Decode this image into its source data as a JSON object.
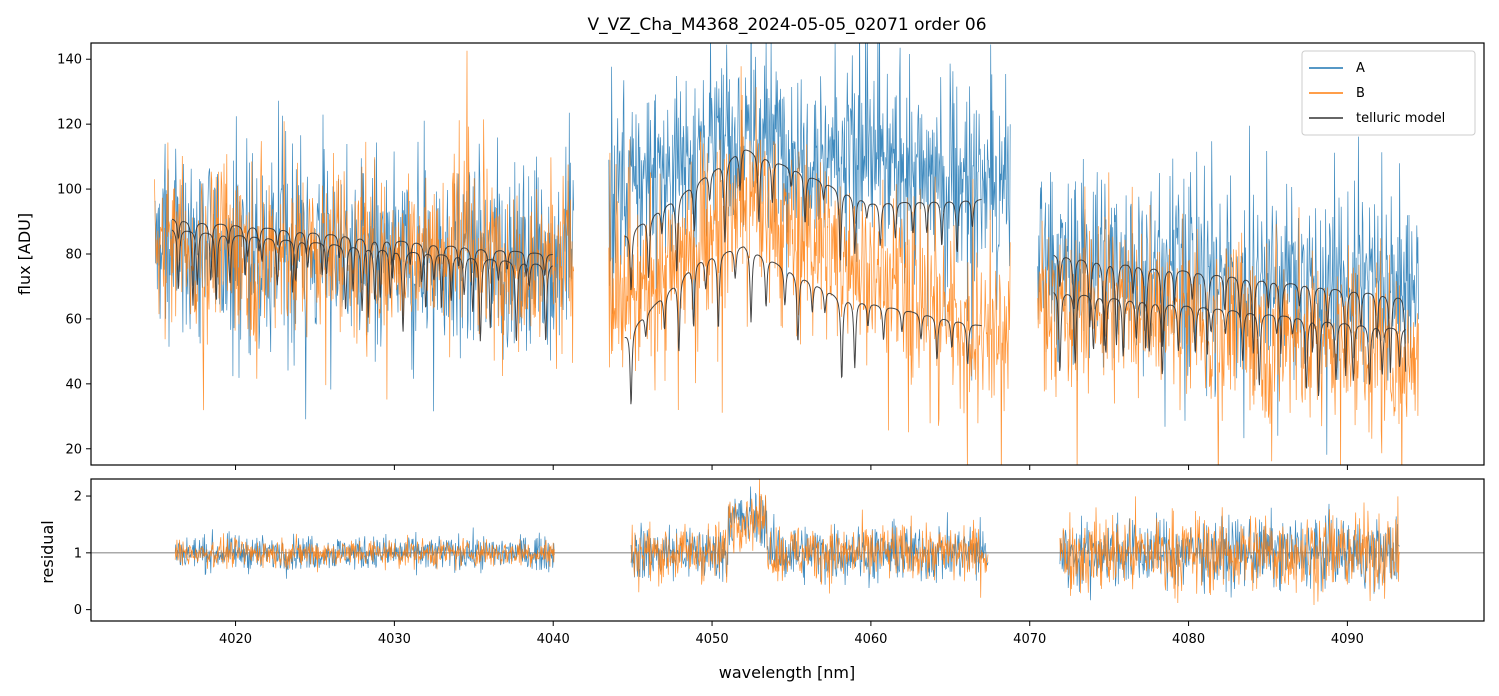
{
  "chart_data": [
    {
      "panel": "top",
      "type": "line",
      "title": "V_VZ_Cha_M4368_2024-05-05_02071  order 06",
      "xlabel": "",
      "ylabel": "flux [ADU]",
      "xlim": [
        4010.9,
        4098.6
      ],
      "ylim": [
        15,
        145
      ],
      "yticks": [
        20,
        40,
        60,
        80,
        100,
        120,
        140
      ],
      "xticks": [
        4020,
        4030,
        4040,
        4050,
        4060,
        4070,
        4080,
        4090
      ],
      "legend": {
        "position": "top-right",
        "entries": [
          "A",
          "B",
          "telluric model"
        ]
      },
      "colors": {
        "A": "#1f77b4",
        "B": "#ff7f0e",
        "telluric model": "#333333"
      },
      "segments": [
        [
          4014.9,
          4041.3
        ],
        [
          4043.5,
          4068.8
        ],
        [
          4070.5,
          4094.5
        ]
      ],
      "series": [
        {
          "name": "A",
          "approx_levels": [
            [
              4015,
              82
            ],
            [
              4041,
              78
            ],
            [
              4044,
              100
            ],
            [
              4052,
              118
            ],
            [
              4068,
              100
            ],
            [
              4071,
              78
            ],
            [
              4094,
              70
            ]
          ],
          "approx_spread": 28
        },
        {
          "name": "B",
          "approx_levels": [
            [
              4015,
              82
            ],
            [
              4041,
              80
            ],
            [
              4044,
              62
            ],
            [
              4052,
              95
            ],
            [
              4068,
              55
            ],
            [
              4071,
              66
            ],
            [
              4094,
              50
            ]
          ],
          "approx_spread": 25
        },
        {
          "name": "telluric model",
          "curves": [
            {
              "segment": 0,
              "level": [
                [
                  4016,
                  91
                ],
                [
                  4040,
                  80
                ]
              ]
            },
            {
              "segment": 0,
              "level": [
                [
                  4016,
                  88
                ],
                [
                  4040,
                  77
                ]
              ]
            },
            {
              "segment": 1,
              "level": [
                [
                  4044.5,
                  86
                ],
                [
                  4052,
                  113
                ],
                [
                  4060,
                  96
                ],
                [
                  4067,
                  97
                ]
              ]
            },
            {
              "segment": 1,
              "level": [
                [
                  4044.5,
                  55
                ],
                [
                  4049,
                  78
                ],
                [
                  4052,
                  83
                ],
                [
                  4058,
                  67
                ],
                [
                  4067,
                  58
                ]
              ]
            },
            {
              "segment": 2,
              "level": [
                [
                  4071.5,
                  80
                ],
                [
                  4094,
                  67
                ]
              ]
            },
            {
              "segment": 2,
              "level": [
                [
                  4071.5,
                  69
                ],
                [
                  4094,
                  57
                ]
              ]
            }
          ]
        }
      ]
    },
    {
      "panel": "bottom",
      "type": "line",
      "title": "",
      "xlabel": "wavelength [nm]",
      "ylabel": "residual",
      "xlim": [
        4010.9,
        4098.6
      ],
      "ylim": [
        -0.2,
        2.3
      ],
      "yticks": [
        0,
        1,
        2
      ],
      "xticks": [
        4020,
        4030,
        4040,
        4050,
        4060,
        4070,
        4080,
        4090
      ],
      "reference_line": 1,
      "segments": [
        [
          4016.2,
          4040.1
        ],
        [
          4044.9,
          4067.4
        ],
        [
          4071.9,
          4093.3
        ]
      ],
      "series": [
        {
          "name": "A",
          "center": 1.0,
          "approx_spread": [
            0.3,
            0.5,
            0.6
          ]
        },
        {
          "name": "B",
          "center": 1.0,
          "approx_spread": [
            0.25,
            0.5,
            0.7
          ]
        }
      ]
    }
  ]
}
